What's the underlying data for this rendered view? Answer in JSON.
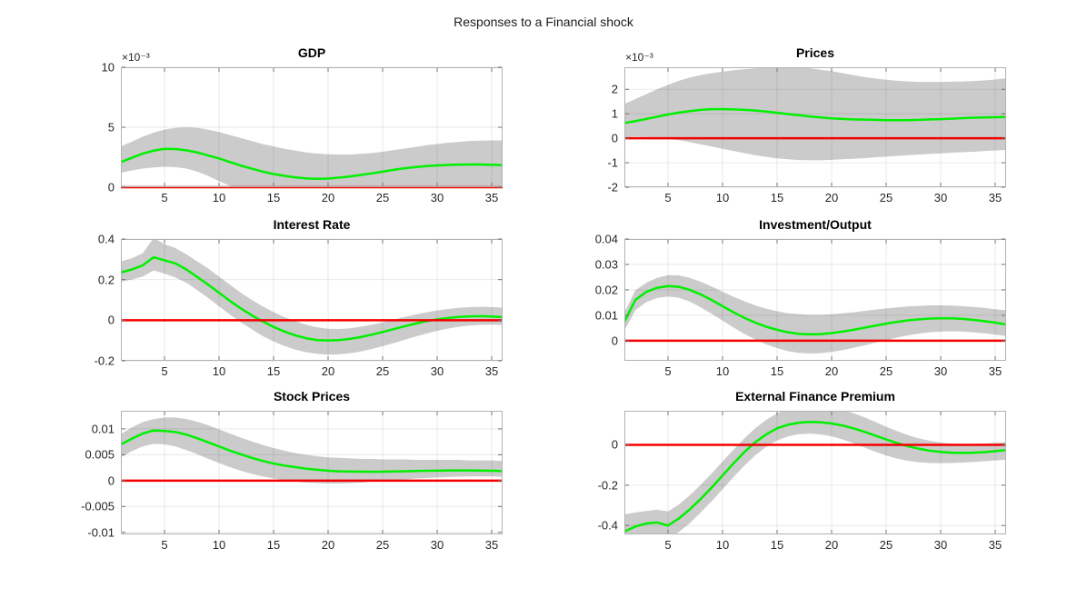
{
  "figure": {
    "title": "Responses to a Financial shock",
    "colors": {
      "median_line": "#00f000",
      "zero_line": "#f50000",
      "band": "#cbcbcb",
      "frame": "#b2b2b2",
      "grid": "rgba(38,38,38,0.10)",
      "tick": "#707070",
      "label": "#262626"
    },
    "x": [
      1,
      2,
      3,
      4,
      5,
      6,
      7,
      8,
      9,
      10,
      11,
      12,
      13,
      14,
      15,
      16,
      17,
      18,
      19,
      20,
      21,
      22,
      23,
      24,
      25,
      26,
      27,
      28,
      29,
      30,
      31,
      32,
      33,
      34,
      35,
      36
    ]
  },
  "chart_data": [
    {
      "type": "line",
      "title": "GDP",
      "exponent": "×10⁻³",
      "xlim": [
        1,
        36
      ],
      "ylim": [
        0,
        0.01
      ],
      "xticks": [
        5,
        10,
        15,
        20,
        25,
        30,
        35
      ],
      "xtick_labels": [
        "5",
        "10",
        "15",
        "20",
        "25",
        "30",
        "35"
      ],
      "yticks": [
        0,
        0.005,
        0.01
      ],
      "ytick_labels": [
        "0",
        "5",
        "10"
      ],
      "zero_line": 0,
      "median": [
        0.0021,
        0.00245,
        0.0028,
        0.00305,
        0.0032,
        0.00318,
        0.00308,
        0.0029,
        0.00265,
        0.0024,
        0.0021,
        0.0018,
        0.00155,
        0.0013,
        0.0011,
        0.00095,
        0.00082,
        0.00073,
        0.0007,
        0.00072,
        0.0008,
        0.0009,
        0.00102,
        0.00115,
        0.0013,
        0.00145,
        0.00158,
        0.00168,
        0.00176,
        0.00182,
        0.00186,
        0.00188,
        0.00189,
        0.00189,
        0.00187,
        0.00185
      ],
      "upper": [
        0.0034,
        0.0038,
        0.0042,
        0.00455,
        0.0048,
        0.00495,
        0.005,
        0.00495,
        0.0048,
        0.0046,
        0.00435,
        0.0041,
        0.00385,
        0.0036,
        0.0034,
        0.0032,
        0.00305,
        0.0029,
        0.0028,
        0.00275,
        0.00272,
        0.00272,
        0.00278,
        0.00285,
        0.00295,
        0.0031,
        0.00322,
        0.00335,
        0.0035,
        0.0036,
        0.0037,
        0.00378,
        0.00385,
        0.00388,
        0.0039,
        0.0039
      ],
      "lower": [
        0.0012,
        0.0014,
        0.00155,
        0.00165,
        0.0017,
        0.00168,
        0.00155,
        0.0013,
        0.00095,
        0.0005,
        0.0001,
        -0.00015,
        -0.0003,
        -0.0004,
        -0.00045,
        -0.00048,
        -0.0005,
        -0.0005,
        -0.00048,
        -0.00045,
        -0.0004,
        -0.00035,
        -0.00028,
        -0.00022,
        -0.00015,
        -0.0001,
        -5e-05,
        -2e-05,
        0,
        2e-05,
        3e-05,
        4e-05,
        5e-05,
        5e-05,
        5e-05,
        4e-05
      ]
    },
    {
      "type": "line",
      "title": "Prices",
      "exponent": "×10⁻³",
      "xlim": [
        1,
        36
      ],
      "ylim": [
        -0.002,
        0.0029
      ],
      "xticks": [
        5,
        10,
        15,
        20,
        25,
        30,
        35
      ],
      "xtick_labels": [
        "5",
        "10",
        "15",
        "20",
        "25",
        "30",
        "35"
      ],
      "yticks": [
        -0.002,
        -0.001,
        0,
        0.001,
        0.002
      ],
      "ytick_labels": [
        "-2",
        "-1",
        "0",
        "1",
        "2"
      ],
      "zero_line": 0,
      "median": [
        0.00062,
        0.0007,
        0.00079,
        0.00088,
        0.00097,
        0.00105,
        0.00111,
        0.00116,
        0.00119,
        0.00119,
        0.00118,
        0.00116,
        0.00113,
        0.00109,
        0.00104,
        0.00099,
        0.00094,
        0.00089,
        0.00085,
        0.00081,
        0.00079,
        0.00077,
        0.00076,
        0.00075,
        0.00074,
        0.00074,
        0.00074,
        0.00075,
        0.00077,
        0.00078,
        0.0008,
        0.00082,
        0.00084,
        0.00085,
        0.00086,
        0.00087
      ],
      "upper": [
        0.0014,
        0.0016,
        0.0018,
        0.002,
        0.00218,
        0.00235,
        0.00248,
        0.00258,
        0.00266,
        0.00272,
        0.00278,
        0.00282,
        0.00286,
        0.0029,
        0.00292,
        0.00292,
        0.0029,
        0.00286,
        0.0028,
        0.00274,
        0.00266,
        0.00258,
        0.0025,
        0.00244,
        0.00239,
        0.00235,
        0.00232,
        0.0023,
        0.0023,
        0.0023,
        0.00231,
        0.00232,
        0.00234,
        0.00236,
        0.0024,
        0.00245
      ],
      "lower": [
        5e-05,
        6e-05,
        5e-05,
        2e-05,
        -2e-05,
        -8e-05,
        -0.00016,
        -0.00025,
        -0.00034,
        -0.00043,
        -0.00052,
        -0.00061,
        -0.00069,
        -0.00076,
        -0.00082,
        -0.00086,
        -0.00089,
        -0.0009,
        -0.0009,
        -0.00088,
        -0.00086,
        -0.00084,
        -0.00081,
        -0.00078,
        -0.00075,
        -0.00072,
        -0.00069,
        -0.00067,
        -0.00064,
        -0.00062,
        -0.00059,
        -0.00057,
        -0.00055,
        -0.00052,
        -0.0005,
        -0.00048
      ]
    },
    {
      "type": "line",
      "title": "Interest Rate",
      "xlim": [
        1,
        36
      ],
      "ylim": [
        -0.2,
        0.4
      ],
      "xticks": [
        5,
        10,
        15,
        20,
        25,
        30,
        35
      ],
      "xtick_labels": [
        "5",
        "10",
        "15",
        "20",
        "25",
        "30",
        "35"
      ],
      "yticks": [
        -0.2,
        0,
        0.2,
        0.4
      ],
      "ytick_labels": [
        "-0.2",
        "0",
        "0.2",
        "0.4"
      ],
      "zero_line": 0,
      "median": [
        0.235,
        0.25,
        0.27,
        0.31,
        0.295,
        0.28,
        0.25,
        0.213,
        0.175,
        0.135,
        0.095,
        0.058,
        0.024,
        -0.006,
        -0.033,
        -0.056,
        -0.075,
        -0.089,
        -0.098,
        -0.1,
        -0.098,
        -0.092,
        -0.083,
        -0.071,
        -0.058,
        -0.044,
        -0.03,
        -0.017,
        -0.005,
        0.004,
        0.011,
        0.016,
        0.019,
        0.02,
        0.018,
        0.015
      ],
      "upper": [
        0.29,
        0.305,
        0.33,
        0.405,
        0.375,
        0.355,
        0.325,
        0.29,
        0.255,
        0.215,
        0.175,
        0.135,
        0.1,
        0.068,
        0.04,
        0.015,
        -0.005,
        -0.022,
        -0.035,
        -0.042,
        -0.043,
        -0.04,
        -0.032,
        -0.022,
        -0.01,
        0.003,
        0.016,
        0.028,
        0.039,
        0.048,
        0.055,
        0.061,
        0.065,
        0.066,
        0.065,
        0.062
      ],
      "lower": [
        0.19,
        0.2,
        0.215,
        0.245,
        0.23,
        0.21,
        0.185,
        0.148,
        0.11,
        0.068,
        0.028,
        -0.01,
        -0.045,
        -0.078,
        -0.105,
        -0.127,
        -0.145,
        -0.158,
        -0.166,
        -0.17,
        -0.168,
        -0.163,
        -0.154,
        -0.142,
        -0.128,
        -0.113,
        -0.097,
        -0.081,
        -0.066,
        -0.052,
        -0.041,
        -0.032,
        -0.026,
        -0.023,
        -0.022,
        -0.023
      ]
    },
    {
      "type": "line",
      "title": "Investment/Output",
      "xlim": [
        1,
        36
      ],
      "ylim": [
        -0.0079,
        0.04
      ],
      "xticks": [
        5,
        10,
        15,
        20,
        25,
        30,
        35
      ],
      "xtick_labels": [
        "5",
        "10",
        "15",
        "20",
        "25",
        "30",
        "35"
      ],
      "yticks": [
        0,
        0.01,
        0.02,
        0.03,
        0.04
      ],
      "ytick_labels": [
        "0",
        "0.01",
        "0.02",
        "0.03",
        "0.04"
      ],
      "zero_line": 0,
      "median": [
        0.0075,
        0.016,
        0.0192,
        0.0208,
        0.0215,
        0.0212,
        0.02,
        0.0182,
        0.016,
        0.0136,
        0.0112,
        0.009,
        0.0071,
        0.0055,
        0.0043,
        0.0033,
        0.0027,
        0.0025,
        0.0026,
        0.003,
        0.0036,
        0.0043,
        0.0051,
        0.0059,
        0.0067,
        0.0074,
        0.008,
        0.0084,
        0.0087,
        0.0088,
        0.0088,
        0.0086,
        0.0082,
        0.0077,
        0.0071,
        0.0064
      ],
      "upper": [
        0.011,
        0.0198,
        0.0228,
        0.0247,
        0.0258,
        0.0257,
        0.0247,
        0.0232,
        0.0213,
        0.0193,
        0.0173,
        0.0155,
        0.0139,
        0.0126,
        0.0116,
        0.0108,
        0.0104,
        0.0102,
        0.0102,
        0.0104,
        0.0108,
        0.0112,
        0.0117,
        0.0122,
        0.0127,
        0.0131,
        0.0135,
        0.0137,
        0.0139,
        0.0139,
        0.0138,
        0.0136,
        0.0133,
        0.0129,
        0.0124,
        0.012
      ],
      "lower": [
        0.004,
        0.012,
        0.0152,
        0.0168,
        0.0174,
        0.0169,
        0.0154,
        0.0131,
        0.0106,
        0.0079,
        0.0052,
        0.0027,
        0.0005,
        -0.0014,
        -0.0029,
        -0.0041,
        -0.0048,
        -0.005,
        -0.0049,
        -0.0044,
        -0.0037,
        -0.0028,
        -0.0018,
        -0.0008,
        0.0002,
        0.0012,
        0.0021,
        0.0028,
        0.0033,
        0.0036,
        0.0037,
        0.0036,
        0.0033,
        0.0029,
        0.0024,
        0.0019
      ]
    },
    {
      "type": "line",
      "title": "Stock Prices",
      "xlim": [
        1,
        36
      ],
      "ylim": [
        -0.0104,
        0.0135
      ],
      "xticks": [
        5,
        10,
        15,
        20,
        25,
        30,
        35
      ],
      "xtick_labels": [
        "5",
        "10",
        "15",
        "20",
        "25",
        "30",
        "35"
      ],
      "yticks": [
        -0.01,
        -0.005,
        0,
        0.005,
        0.01
      ],
      "ytick_labels": [
        "-0.01",
        "-0.005",
        "0",
        "0.005",
        "0.01"
      ],
      "zero_line": 0,
      "median": [
        0.007,
        0.0081,
        0.0091,
        0.0097,
        0.0096,
        0.0094,
        0.0089,
        0.0082,
        0.0074,
        0.0066,
        0.0058,
        0.0051,
        0.0044,
        0.0038,
        0.0033,
        0.0029,
        0.0026,
        0.0023,
        0.0021,
        0.0019,
        0.0018,
        0.00175,
        0.00172,
        0.00171,
        0.00173,
        0.00176,
        0.0018,
        0.00185,
        0.0019,
        0.00193,
        0.00196,
        0.00197,
        0.00197,
        0.00195,
        0.0019,
        0.00185
      ],
      "upper": [
        0.009,
        0.0103,
        0.0113,
        0.0119,
        0.0122,
        0.0122,
        0.0119,
        0.0114,
        0.0107,
        0.0099,
        0.0091,
        0.0083,
        0.0076,
        0.0069,
        0.0063,
        0.0058,
        0.0053,
        0.005,
        0.0047,
        0.0045,
        0.0044,
        0.0043,
        0.0042,
        0.0042,
        0.0041,
        0.0041,
        0.0041,
        0.004,
        0.004,
        0.004,
        0.004,
        0.004,
        0.0039,
        0.0039,
        0.0039,
        0.0038
      ],
      "lower": [
        0.0045,
        0.0057,
        0.0066,
        0.0071,
        0.007,
        0.0066,
        0.0059,
        0.0051,
        0.0042,
        0.0034,
        0.0026,
        0.0019,
        0.0013,
        0.0008,
        0.0004,
        0.0001,
        -0.0002,
        -0.0004,
        -0.0005,
        -0.00055,
        -0.00055,
        -0.0005,
        -0.0004,
        -0.0002,
        -0.0001,
        0.0001,
        0.0002,
        0.0004,
        0.0005,
        0.0006,
        0.0007,
        0.00075,
        0.0008,
        0.0008,
        0.0008,
        0.00075
      ]
    },
    {
      "type": "line",
      "title": "External Finance Premium",
      "xlim": [
        1,
        36
      ],
      "ylim": [
        -0.444,
        0.169
      ],
      "xticks": [
        5,
        10,
        15,
        20,
        25,
        30,
        35
      ],
      "xtick_labels": [
        "5",
        "10",
        "15",
        "20",
        "25",
        "30",
        "35"
      ],
      "yticks": [
        -0.4,
        -0.2,
        0
      ],
      "ytick_labels": [
        "-0.4",
        "-0.2",
        "0"
      ],
      "zero_line": 0,
      "median": [
        -0.43,
        -0.405,
        -0.39,
        -0.385,
        -0.4,
        -0.365,
        -0.32,
        -0.268,
        -0.212,
        -0.152,
        -0.092,
        -0.036,
        0.013,
        0.052,
        0.082,
        0.1,
        0.11,
        0.114,
        0.112,
        0.106,
        0.096,
        0.082,
        0.065,
        0.046,
        0.027,
        0.009,
        -0.007,
        -0.019,
        -0.029,
        -0.035,
        -0.039,
        -0.04,
        -0.039,
        -0.036,
        -0.031,
        -0.026
      ],
      "upper": [
        -0.345,
        -0.335,
        -0.328,
        -0.322,
        -0.33,
        -0.296,
        -0.25,
        -0.198,
        -0.142,
        -0.082,
        -0.024,
        0.032,
        0.082,
        0.124,
        0.156,
        0.178,
        0.19,
        0.194,
        0.192,
        0.185,
        0.173,
        0.157,
        0.137,
        0.114,
        0.09,
        0.068,
        0.048,
        0.032,
        0.02,
        0.011,
        0.006,
        0.004,
        0.005,
        0.007,
        0.01,
        0.013
      ],
      "lower": [
        -0.47,
        -0.46,
        -0.452,
        -0.448,
        -0.465,
        -0.432,
        -0.388,
        -0.335,
        -0.28,
        -0.22,
        -0.16,
        -0.103,
        -0.052,
        -0.01,
        0.022,
        0.042,
        0.053,
        0.056,
        0.052,
        0.042,
        0.027,
        0.008,
        -0.013,
        -0.034,
        -0.053,
        -0.068,
        -0.079,
        -0.086,
        -0.09,
        -0.091,
        -0.09,
        -0.088,
        -0.085,
        -0.081,
        -0.077,
        -0.074
      ]
    }
  ]
}
